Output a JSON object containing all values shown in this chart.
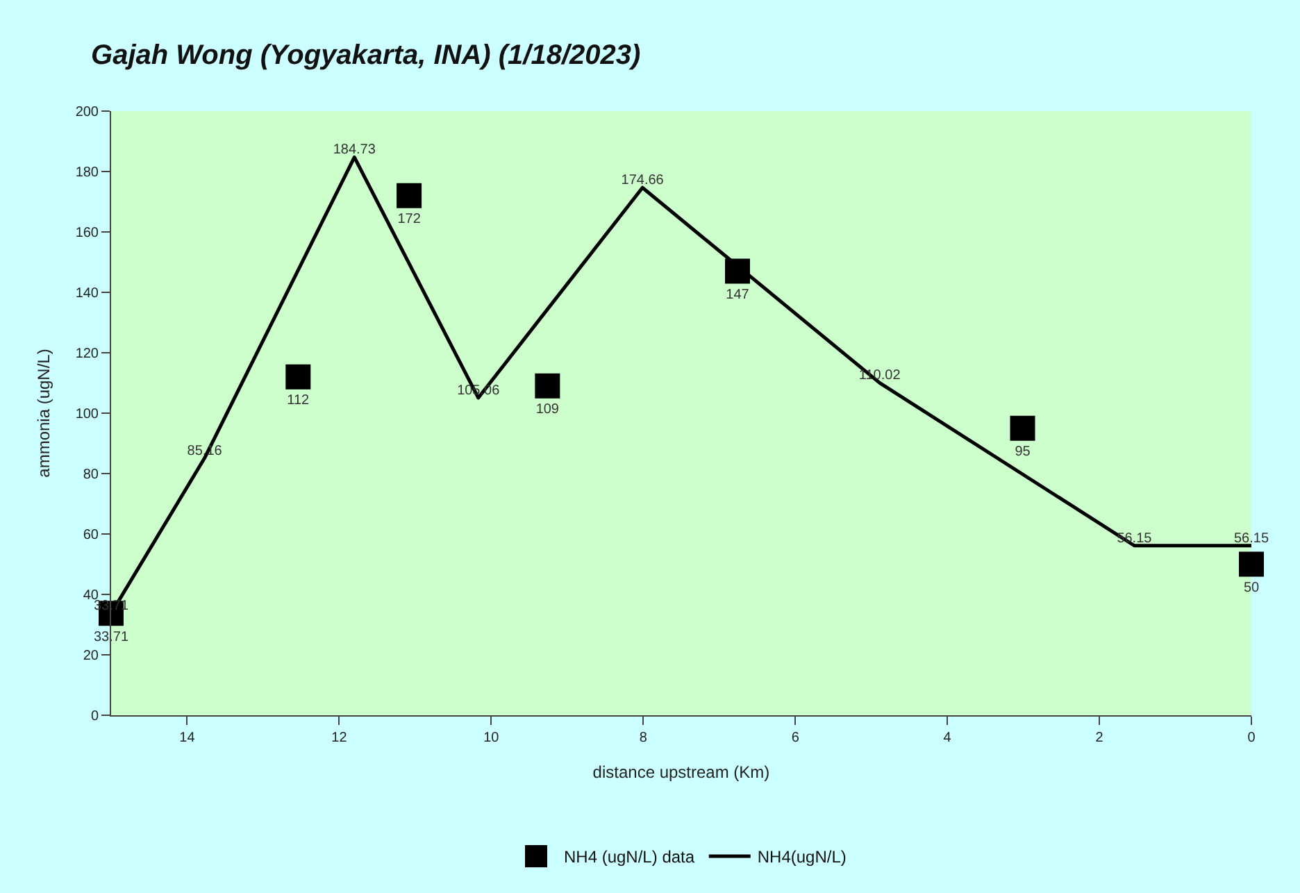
{
  "chart_data": {
    "type": "line",
    "title": "Gajah Wong (Yogyakarta, INA) (1/18/2023)",
    "xlabel": "distance upstream (Km)",
    "ylabel": "ammonia (ugN/L)",
    "xlim": [
      15,
      0
    ],
    "xticks": [
      14,
      12,
      10,
      8,
      6,
      4,
      2,
      0
    ],
    "ylim": [
      0,
      200
    ],
    "yticks": [
      0,
      20,
      40,
      60,
      80,
      100,
      120,
      140,
      160,
      180,
      200
    ],
    "grid": false,
    "legend": "bottom",
    "data_labels": true,
    "series": [
      {
        "name": "NH4 (ugN/L) data",
        "type": "scatter",
        "marker": "square",
        "color": "#000000",
        "x": [
          15,
          12.54,
          11.08,
          9.26,
          6.76,
          3.01,
          0
        ],
        "values": [
          33.71,
          112,
          172,
          109,
          147,
          95,
          50
        ]
      },
      {
        "name": "NH4(ugN/L)",
        "marker": "none",
        "line_style": "solid",
        "color": "#000000",
        "x": [
          15,
          13.77,
          11.8,
          10.17,
          8.01,
          4.89,
          1.54,
          0
        ],
        "values": [
          33.71,
          85.16,
          184.73,
          105.06,
          174.66,
          110.02,
          56.15,
          56.15
        ]
      }
    ]
  }
}
